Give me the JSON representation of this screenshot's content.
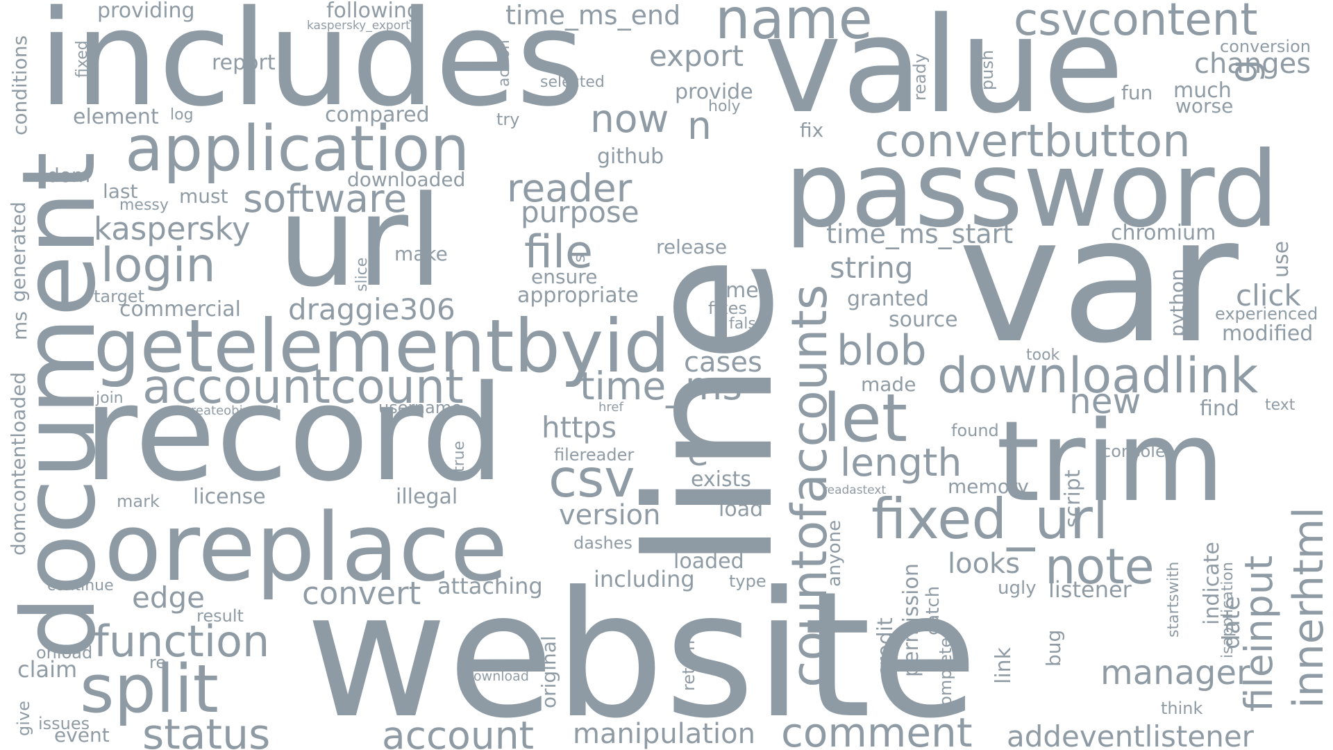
{
  "word_color": "#8f9ba4",
  "background": "#ffffff",
  "words": [
    "website",
    "line",
    "var",
    "includes",
    "value",
    "url",
    "record",
    "document",
    "password",
    "trim",
    "oreplace",
    "getelementbyid",
    "application",
    "split",
    "accountcount",
    "countofaccounts",
    "downloadlink",
    "fixed_url",
    "innerhtml",
    "fileinput",
    "csvcontent",
    "convertbutton",
    "comment",
    "addeventlistener",
    "status",
    "account",
    "function",
    "note",
    "csv",
    "login",
    "file",
    "software",
    "let",
    "name",
    "time_ms",
    "blob",
    "length",
    "reader",
    "manipulation",
    "kaspersky",
    "now",
    "draggie306",
    "convert",
    "time_ms_start",
    "time_ms_end",
    "export",
    "purpose",
    "manager",
    "string",
    "version",
    "https",
    "new",
    "changes",
    "looks",
    "edge",
    "date",
    "e",
    "n",
    "g",
    "cases",
    "click",
    "attaching",
    "including",
    "illegal",
    "appropriate",
    "commercial",
    "license",
    "listener",
    "chromium",
    "granted",
    "source",
    "modified",
    "memory",
    "loaded",
    "script",
    "exists",
    "indicate",
    "python",
    "use",
    "report",
    "providing",
    "following",
    "element",
    "compared",
    "github",
    "downloaded",
    "release",
    "make",
    "ensure",
    "must",
    "last",
    "dom",
    "conditions",
    "generated",
    "ms",
    "domcontentloaded",
    "fixed",
    "action",
    "selected",
    "kaspersky_export",
    "provide",
    "holy",
    "fix",
    "ready",
    "push",
    "much",
    "worse",
    "fun",
    "conversion",
    "log",
    "try",
    "messy",
    "target",
    "slice",
    "s",
    "met",
    "fixes",
    "false",
    "took",
    "experienced",
    "made",
    "join",
    "createobjecturl",
    "username",
    "href",
    "find",
    "text",
    "found",
    "true",
    "filereader",
    "console",
    "readastext",
    "mark",
    "continue",
    "result",
    "onload",
    "re",
    "claim",
    "give",
    "issues",
    "event",
    "download",
    "original",
    "return",
    "credit",
    "permission",
    "catch",
    "completed",
    "link",
    "bug",
    "anyone",
    "type",
    "load",
    "dashes",
    "ugly",
    "think",
    "startswith",
    "isapplication"
  ]
}
